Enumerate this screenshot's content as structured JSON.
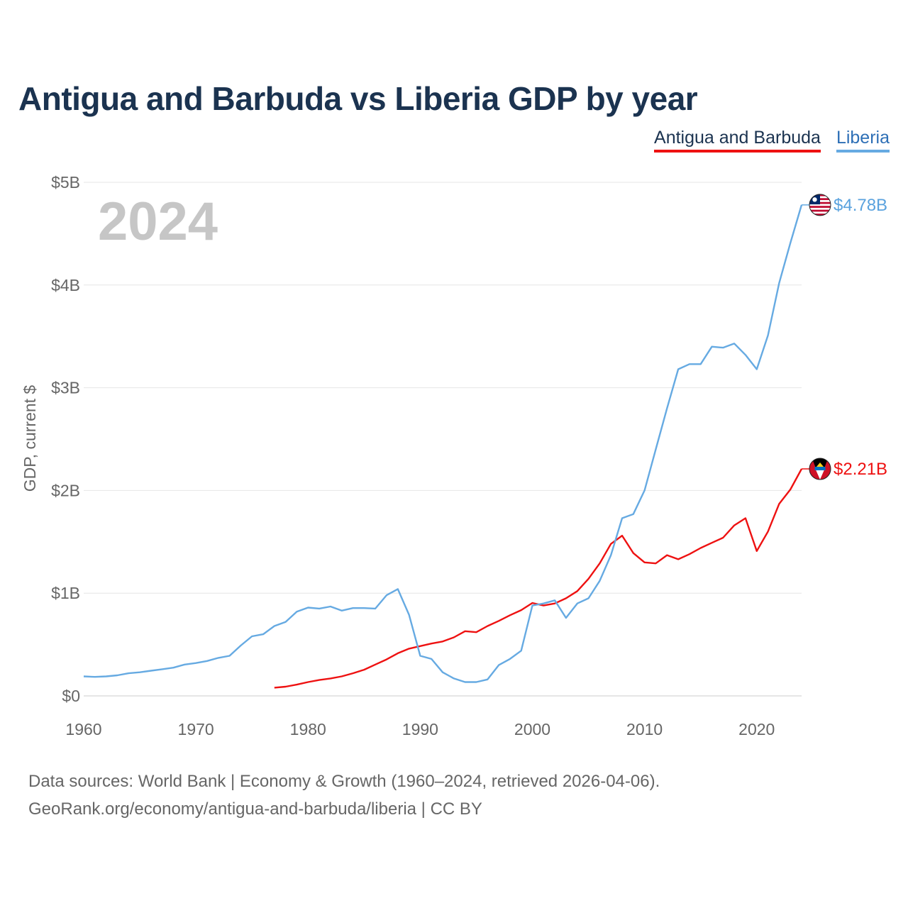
{
  "chart_data": {
    "type": "line",
    "title": "Antigua and Barbuda vs Liberia GDP by year",
    "ylabel": "GDP, current $",
    "xlabel": "",
    "year_label": "2024",
    "xlim": [
      1960,
      2024
    ],
    "ylim": [
      0,
      5000000000
    ],
    "x_ticks": [
      "1960",
      "1970",
      "1980",
      "1990",
      "2000",
      "2010",
      "2020"
    ],
    "y_ticks": [
      {
        "value": 0,
        "label": "$0"
      },
      {
        "value": 1000000000,
        "label": "$1B"
      },
      {
        "value": 2000000000,
        "label": "$2B"
      },
      {
        "value": 3000000000,
        "label": "$3B"
      },
      {
        "value": 4000000000,
        "label": "$4B"
      },
      {
        "value": 5000000000,
        "label": "$5B"
      }
    ],
    "legend_position": "top-right",
    "series": [
      {
        "name": "Antigua and Barbuda",
        "color": "#ee1111",
        "end_label": "$2.21B",
        "x": [
          1977,
          1978,
          1979,
          1980,
          1981,
          1982,
          1983,
          1984,
          1985,
          1986,
          1987,
          1988,
          1989,
          1990,
          1991,
          1992,
          1993,
          1994,
          1995,
          1996,
          1997,
          1998,
          1999,
          2000,
          2001,
          2002,
          2003,
          2004,
          2005,
          2006,
          2007,
          2008,
          2009,
          2010,
          2011,
          2012,
          2013,
          2014,
          2015,
          2016,
          2017,
          2018,
          2019,
          2020,
          2021,
          2022,
          2023,
          2024
        ],
        "values": [
          0.08,
          0.09,
          0.11,
          0.135,
          0.155,
          0.17,
          0.19,
          0.22,
          0.255,
          0.305,
          0.355,
          0.415,
          0.46,
          0.485,
          0.51,
          0.53,
          0.57,
          0.63,
          0.62,
          0.68,
          0.73,
          0.785,
          0.835,
          0.905,
          0.88,
          0.9,
          0.95,
          1.02,
          1.14,
          1.29,
          1.48,
          1.56,
          1.39,
          1.3,
          1.29,
          1.37,
          1.33,
          1.38,
          1.44,
          1.49,
          1.54,
          1.66,
          1.73,
          1.41,
          1.6,
          1.87,
          2.01,
          2.21
        ]
      },
      {
        "name": "Liberia",
        "color": "#66aae2",
        "end_label": "$4.78B",
        "x": [
          1960,
          1961,
          1962,
          1963,
          1964,
          1965,
          1966,
          1967,
          1968,
          1969,
          1970,
          1971,
          1972,
          1973,
          1974,
          1975,
          1976,
          1977,
          1978,
          1979,
          1980,
          1981,
          1982,
          1983,
          1984,
          1985,
          1986,
          1987,
          1988,
          1989,
          1990,
          1991,
          1992,
          1993,
          1994,
          1995,
          1996,
          1997,
          1998,
          1999,
          2000,
          2001,
          2002,
          2003,
          2004,
          2005,
          2006,
          2007,
          2008,
          2009,
          2010,
          2011,
          2012,
          2013,
          2014,
          2015,
          2016,
          2017,
          2018,
          2019,
          2020,
          2021,
          2022,
          2023,
          2024
        ],
        "values": [
          0.19,
          0.185,
          0.19,
          0.2,
          0.22,
          0.23,
          0.245,
          0.26,
          0.275,
          0.305,
          0.32,
          0.34,
          0.37,
          0.39,
          0.49,
          0.58,
          0.6,
          0.68,
          0.72,
          0.82,
          0.86,
          0.85,
          0.87,
          0.83,
          0.855,
          0.855,
          0.85,
          0.98,
          1.04,
          0.79,
          0.39,
          0.36,
          0.23,
          0.17,
          0.135,
          0.135,
          0.16,
          0.3,
          0.36,
          0.44,
          0.88,
          0.9,
          0.93,
          0.76,
          0.9,
          0.95,
          1.12,
          1.37,
          1.73,
          1.77,
          2.0,
          2.4,
          2.8,
          3.18,
          3.23,
          3.23,
          3.4,
          3.39,
          3.43,
          3.32,
          3.18,
          3.51,
          4.02,
          4.41,
          4.78
        ]
      }
    ]
  },
  "footer": {
    "line1": "Data sources: World Bank | Economy & Growth (1960–2024, retrieved 2026-04-06).",
    "line2": "GeoRank.org/economy/antigua-and-barbuda/liberia | CC BY"
  }
}
